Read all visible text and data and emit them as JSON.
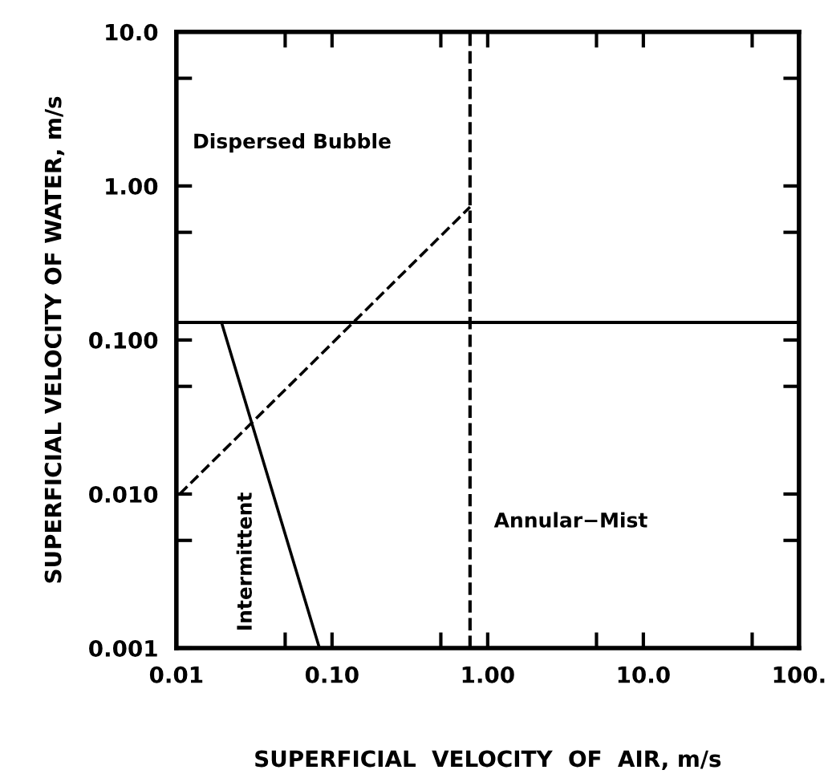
{
  "chart_data": {
    "type": "line",
    "xlabel": "SUPERFICIAL  VELOCITY  OF  AIR, m/s",
    "ylabel": "SUPERFICIAL VELOCITY OF WATER, m/s",
    "log": "xy",
    "xlim": [
      0.01,
      100
    ],
    "ylim": [
      0.001,
      10
    ],
    "xticks": [
      0.01,
      {
        "value": 0.05,
        "label": null
      },
      {
        "value": 0.1,
        "label": "0.10"
      },
      {
        "value": 0.5,
        "label": null
      },
      {
        "value": 1,
        "label": "1.00"
      },
      {
        "value": 5,
        "label": null
      },
      {
        "value": 10,
        "label": "10.0"
      },
      {
        "value": 50,
        "label": null
      },
      {
        "value": 100,
        "label": "100."
      }
    ],
    "yticks": [
      0.001,
      {
        "value": 0.005,
        "label": null
      },
      {
        "value": 0.01,
        "label": "0.010"
      },
      {
        "value": 0.05,
        "label": null
      },
      {
        "value": 0.1,
        "label": "0.100"
      },
      {
        "value": 0.5,
        "label": null
      },
      {
        "value": 1,
        "label": "1.00"
      },
      {
        "value": 5,
        "label": null
      },
      {
        "value": 10,
        "label": "10.0"
      }
    ],
    "series": [
      {
        "color": "#000000",
        "line_style": "solid",
        "x": [
          0.0195,
          0.083
        ],
        "values": [
          0.13,
          0.001
        ]
      },
      {
        "color": "#000000",
        "line_style": "dashed",
        "x": [
          0.0105,
          0.77
        ],
        "values": [
          0.01,
          0.73
        ]
      }
    ],
    "ref_lines": [
      {
        "axis": "y",
        "value": 0.13,
        "color": "#000000",
        "line_style": "solid"
      },
      {
        "axis": "x",
        "value": 0.77,
        "color": "#000000",
        "line_style": "dashed"
      }
    ],
    "annotations": [
      "Dispersed Bubble",
      "Intermittent",
      "Annular−Mist"
    ],
    "grid": false,
    "legend": false
  }
}
